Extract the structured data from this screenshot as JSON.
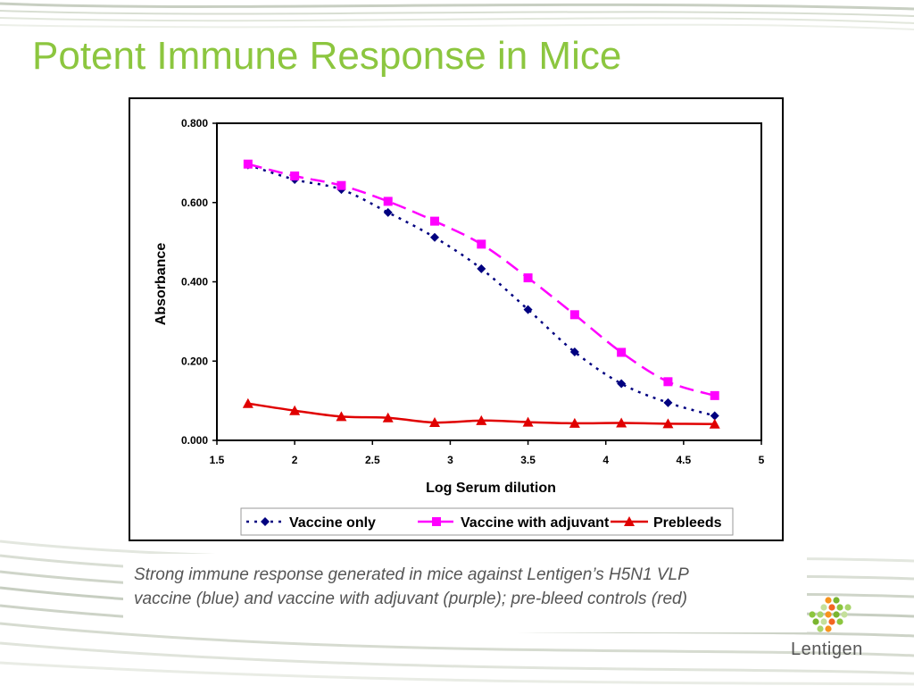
{
  "slide": {
    "title": "Potent Immune Response in Mice",
    "caption_line1": "Strong immune response generated in mice against Lentigen’s H5N1 VLP",
    "caption_line2": "vaccine (blue) and vaccine with adjuvant (purple); pre-bleed controls (red)",
    "logo_text": "Lentigen",
    "colors": {
      "title": "#8cc63f",
      "caption": "#555555"
    }
  },
  "chart_data": {
    "type": "line",
    "title": "",
    "xlabel": "Log Serum dilution",
    "ylabel": "Absorbance",
    "xlim": [
      1.5,
      5
    ],
    "ylim": [
      0,
      0.8
    ],
    "x_ticks": [
      "1.5",
      "2",
      "2.5",
      "3",
      "3.5",
      "4",
      "4.5",
      "5"
    ],
    "y_ticks": [
      "0.000",
      "0.200",
      "0.400",
      "0.600",
      "0.800"
    ],
    "grid": false,
    "legend_position": "bottom",
    "x": [
      1.7,
      2.0,
      2.3,
      2.6,
      2.9,
      3.2,
      3.5,
      3.8,
      4.1,
      4.4,
      4.7
    ],
    "series": [
      {
        "name": "Vaccine only",
        "color": "#000080",
        "marker": "diamond",
        "dash": "dotted",
        "values": [
          0.695,
          0.658,
          0.633,
          0.575,
          0.512,
          0.433,
          0.33,
          0.223,
          0.143,
          0.095,
          0.062
        ]
      },
      {
        "name": "Vaccine with adjuvant",
        "color": "#ff00ff",
        "marker": "square",
        "dash": "dashed",
        "values": [
          0.697,
          0.667,
          0.643,
          0.603,
          0.553,
          0.495,
          0.41,
          0.317,
          0.222,
          0.148,
          0.113
        ]
      },
      {
        "name": "Prebleeds",
        "color": "#e00000",
        "marker": "triangle",
        "dash": "solid",
        "values": [
          0.093,
          0.075,
          0.06,
          0.057,
          0.045,
          0.05,
          0.046,
          0.043,
          0.044,
          0.042,
          0.041
        ]
      }
    ]
  }
}
